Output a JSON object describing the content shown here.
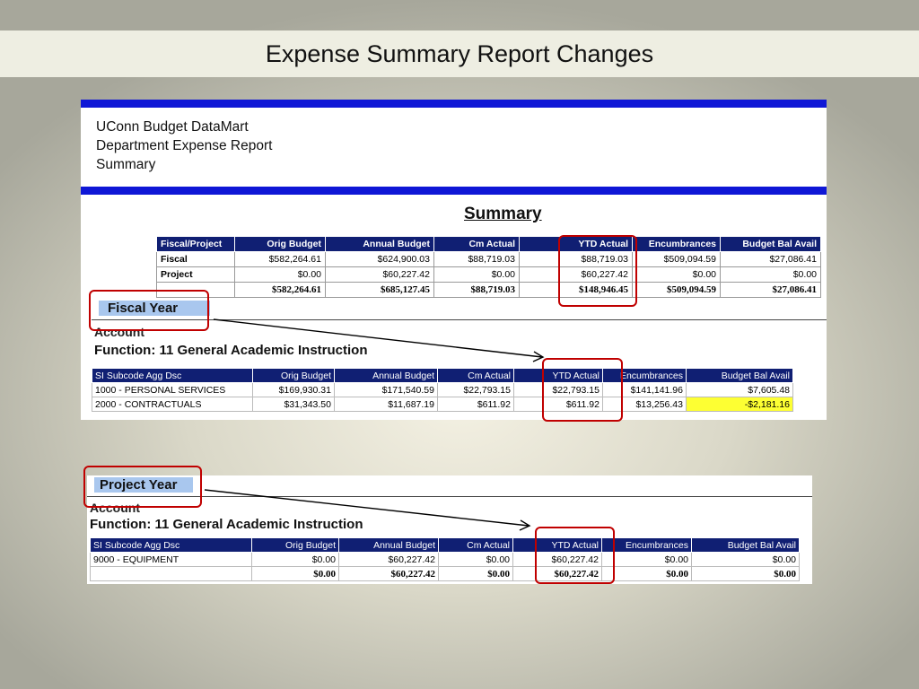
{
  "slide": {
    "title": "Expense Summary Report Changes"
  },
  "report": {
    "header_lines": [
      "UConn Budget DataMart",
      "Department Expense Report",
      "Summary"
    ],
    "summary_heading": "Summary",
    "summary_table": {
      "columns": [
        "Fiscal/Project",
        "Orig Budget",
        "Annual Budget",
        "Cm Actual",
        "YTD Actual",
        "Encumbrances",
        "Budget Bal Avail"
      ],
      "rows": [
        [
          "Fiscal",
          "$582,264.61",
          "$624,900.03",
          "$88,719.03",
          "$88,719.03",
          "$509,094.59",
          "$27,086.41"
        ],
        [
          "Project",
          "$0.00",
          "$60,227.42",
          "$0.00",
          "$60,227.42",
          "$0.00",
          "$0.00"
        ],
        [
          "",
          "$582,264.61",
          "$685,127.45",
          "$88,719.03",
          "$148,946.45",
          "$509,094.59",
          "$27,086.41"
        ]
      ]
    },
    "fiscal_year_label": "Fiscal Year",
    "project_year_label": "Project Year",
    "account_label": "Account",
    "function_label": "Function: 11  General Academic Instruction",
    "detail_columns": [
      "SI Subcode Agg Dsc",
      "Orig Budget",
      "Annual Budget",
      "Cm Actual",
      "YTD Actual",
      "Encumbrances",
      "Budget Bal Avail"
    ],
    "fiscal_detail_rows": [
      [
        "1000 - PERSONAL SERVICES",
        "$169,930.31",
        "$171,540.59",
        "$22,793.15",
        "$22,793.15",
        "$141,141.96",
        "$7,605.48"
      ],
      [
        "2000 - CONTRACTUALS",
        "$31,343.50",
        "$11,687.19",
        "$611.92",
        "$611.92",
        "$13,256.43",
        "-$2,181.16"
      ]
    ],
    "project_detail_rows": [
      [
        "9000 - EQUIPMENT",
        "$0.00",
        "$60,227.42",
        "$0.00",
        "$60,227.42",
        "$0.00",
        "$0.00"
      ],
      [
        "",
        "$0.00",
        "$60,227.42",
        "$0.00",
        "$60,227.42",
        "$0.00",
        "$0.00"
      ]
    ]
  },
  "colors": {
    "header_bar": "#0f17d6",
    "table_header": "#101f73",
    "highlight_box": "#c00000",
    "negative_fill": "#fdff33",
    "label_fill": "#a9c7ee"
  }
}
